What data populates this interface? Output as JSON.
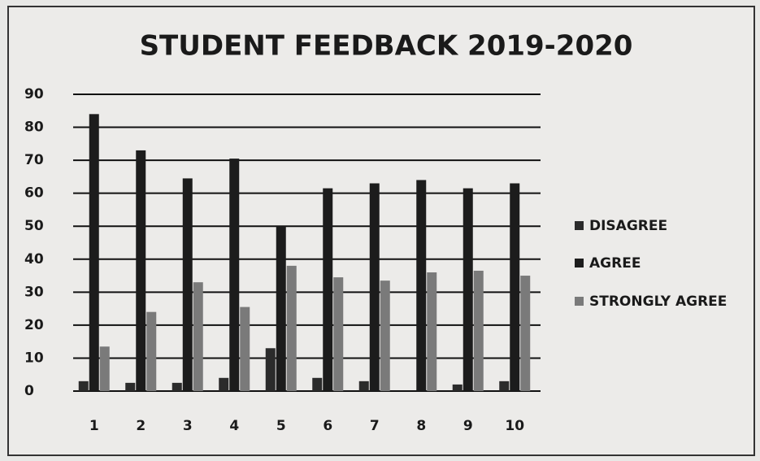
{
  "chart_data": {
    "type": "bar",
    "title": "STUDENT FEEDBACK 2019-2020",
    "categories": [
      "1",
      "2",
      "3",
      "4",
      "5",
      "6",
      "7",
      "8",
      "9",
      "10"
    ],
    "series": [
      {
        "name": "DISAGREE",
        "color": "#2b2b2b",
        "values": [
          3,
          2.5,
          2.5,
          4,
          13,
          4,
          3,
          0,
          2,
          3
        ]
      },
      {
        "name": "AGREE",
        "color": "#1c1c1c",
        "values": [
          84,
          73,
          64.5,
          70.5,
          50,
          61.5,
          63,
          64,
          61.5,
          63
        ]
      },
      {
        "name": "STRONGLY AGREE",
        "color": "#7a7a7a",
        "values": [
          13.5,
          24,
          33,
          25.5,
          38,
          34.5,
          33.5,
          36,
          36.5,
          35
        ]
      }
    ],
    "ylim": [
      0,
      90
    ],
    "yticks": [
      0,
      10,
      20,
      30,
      40,
      50,
      60,
      70,
      80,
      90
    ],
    "grid": true,
    "legend": "right"
  }
}
